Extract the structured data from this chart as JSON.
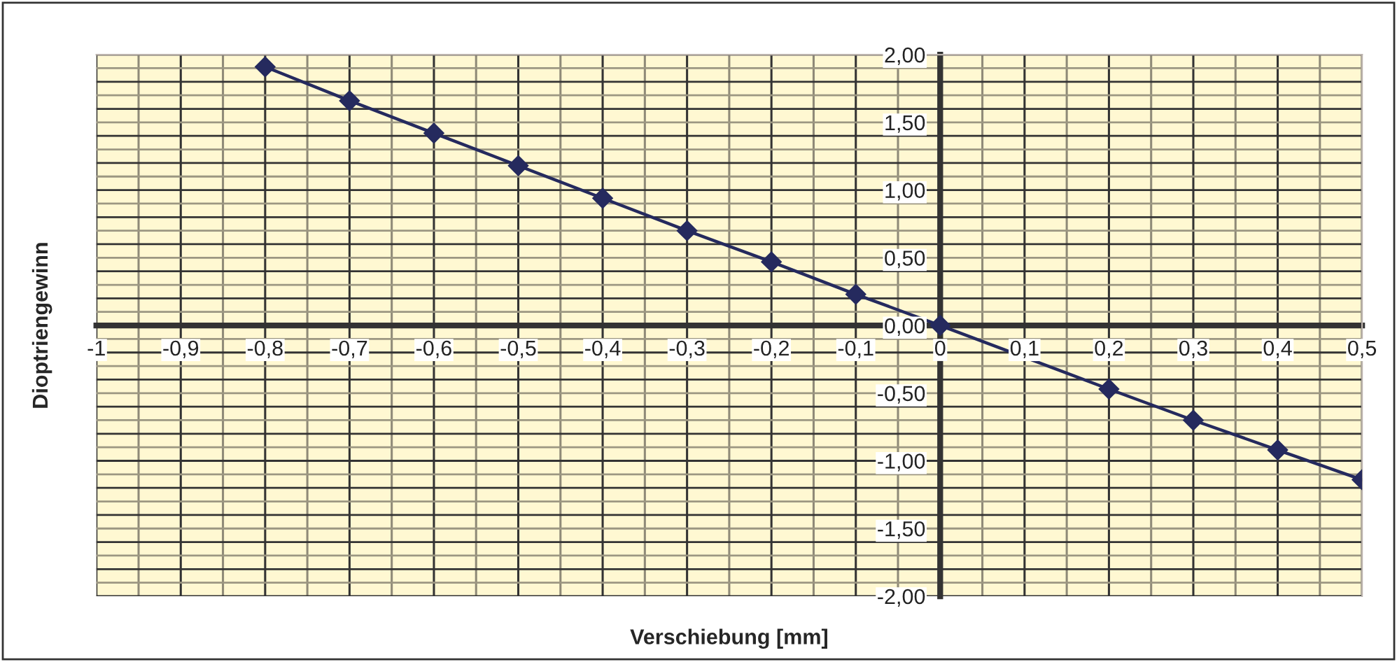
{
  "chart_data": {
    "type": "line",
    "xlabel": "Verschiebung [mm]",
    "ylabel": "Dioptriengewinn",
    "x": [
      -0.8,
      -0.7,
      -0.6,
      -0.5,
      -0.4,
      -0.3,
      -0.2,
      -0.1,
      0,
      0.2,
      0.3,
      0.4,
      0.5
    ],
    "series": [
      {
        "color": "#252a5e",
        "values": [
          1.91,
          1.66,
          1.42,
          1.18,
          0.94,
          0.7,
          0.47,
          0.23,
          0.0,
          -0.47,
          -0.7,
          -0.92,
          -1.14
        ]
      }
    ],
    "marker": "diamond",
    "line_style": "solid",
    "grid": true,
    "xlim": [
      -1,
      0.5
    ],
    "ylim": [
      -2,
      2
    ],
    "xticks": [
      {
        "value": -1,
        "label": "-1"
      },
      {
        "value": -0.9,
        "label": "-0,9"
      },
      {
        "value": -0.8,
        "label": "-0,8"
      },
      {
        "value": -0.7,
        "label": "-0,7"
      },
      {
        "value": -0.6,
        "label": "-0,6"
      },
      {
        "value": -0.5,
        "label": "-0,5"
      },
      {
        "value": -0.4,
        "label": "-0,4"
      },
      {
        "value": -0.3,
        "label": "-0,3"
      },
      {
        "value": -0.2,
        "label": "-0,2"
      },
      {
        "value": -0.1,
        "label": "-0,1"
      },
      {
        "value": 0,
        "label": "0"
      },
      {
        "value": 0.1,
        "label": "0,1"
      },
      {
        "value": 0.2,
        "label": "0,2"
      },
      {
        "value": 0.3,
        "label": "0,3"
      },
      {
        "value": 0.4,
        "label": "0,4"
      },
      {
        "value": 0.5,
        "label": "0,5"
      }
    ],
    "yticks": [
      {
        "value": -2,
        "label": "-2,00"
      },
      {
        "value": -1.5,
        "label": "-1,50"
      },
      {
        "value": -1,
        "label": "-1,00"
      },
      {
        "value": -0.5,
        "label": "-0,50"
      },
      {
        "value": 0,
        "label": "0,00"
      },
      {
        "value": 0.5,
        "label": "0,50"
      },
      {
        "value": 1,
        "label": "1,00"
      },
      {
        "value": 1.5,
        "label": "1,50"
      },
      {
        "value": 2,
        "label": "2,00"
      }
    ]
  }
}
